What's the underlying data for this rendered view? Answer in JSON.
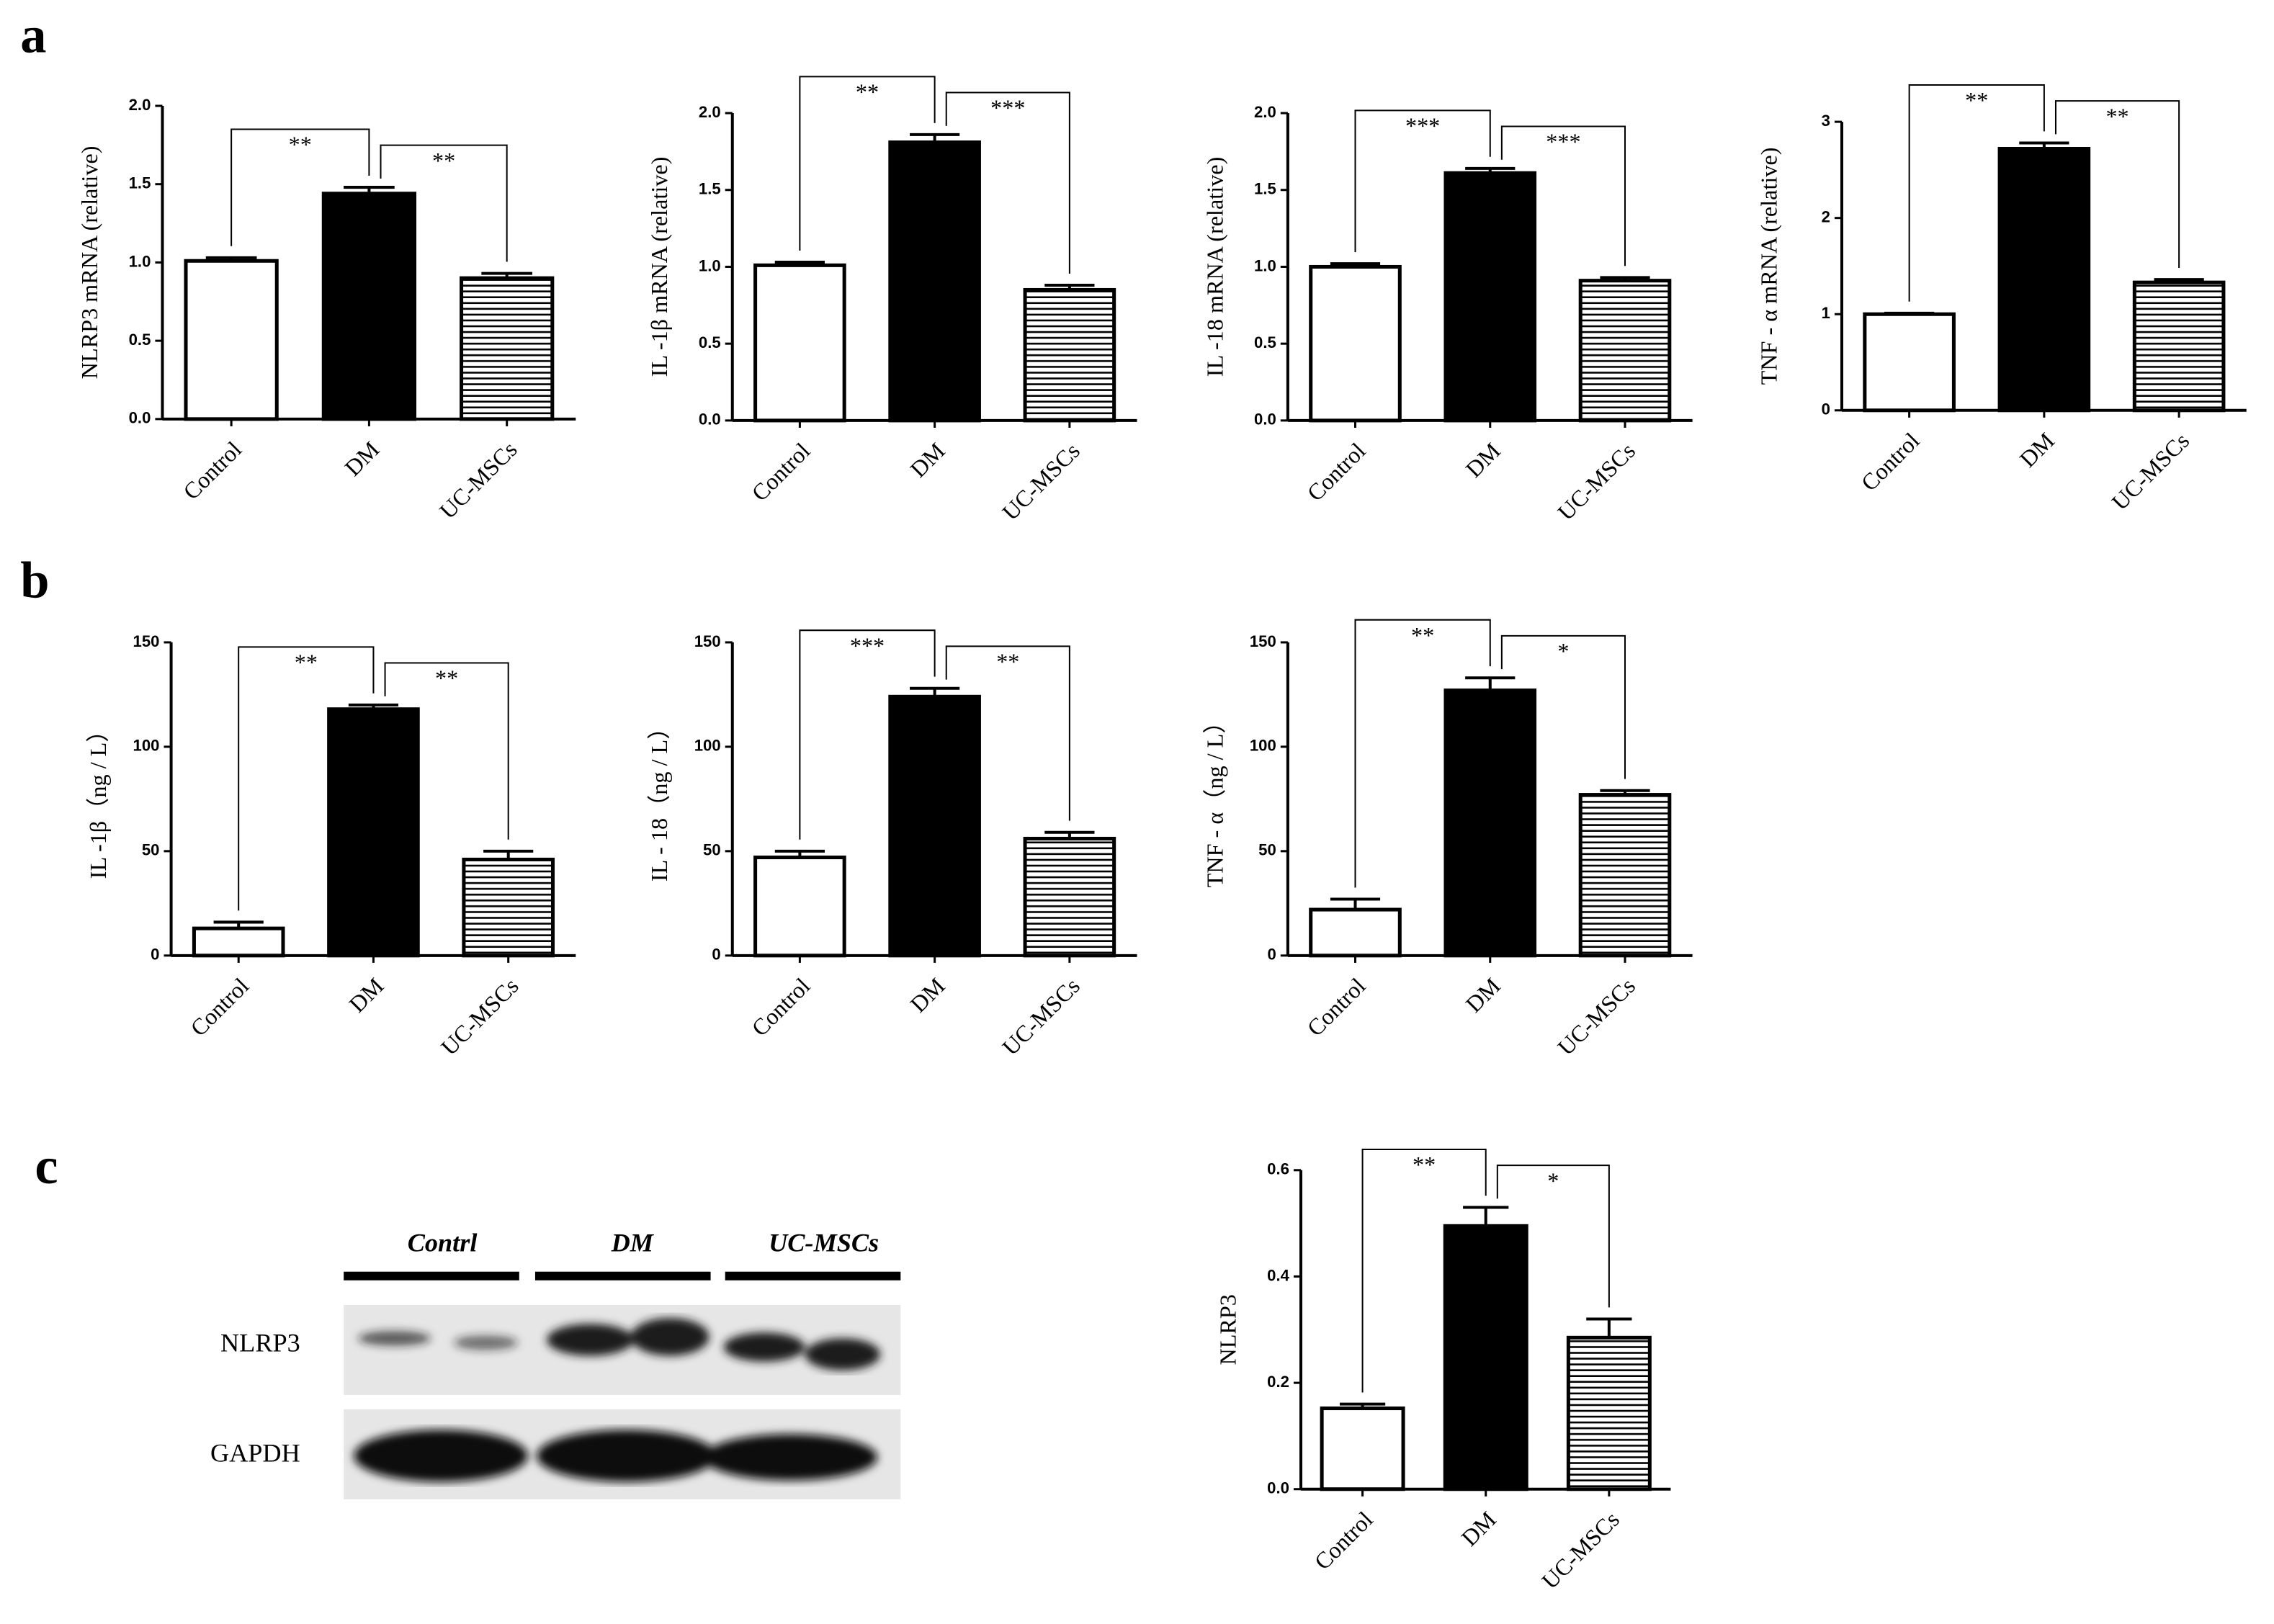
{
  "panel_labels": [
    "a",
    "b",
    "c"
  ],
  "blot": {
    "groups": [
      "Contrl",
      "DM",
      "UC-MSCs"
    ],
    "rows": [
      "NLRP3",
      "GAPDH"
    ]
  },
  "chart_data": [
    {
      "type": "bar",
      "ylabel": "NLRP3  mRNA  (relative)",
      "categories": [
        "Control",
        "DM",
        "UC-MSCs"
      ],
      "values": [
        1.01,
        1.44,
        0.9
      ],
      "errors": [
        0.02,
        0.04,
        0.03
      ],
      "bar_styles": [
        "open",
        "solid",
        "striped"
      ],
      "ylim": [
        0,
        2
      ],
      "yticks": [
        {
          "value": 0,
          "label": "0.0"
        },
        0.5,
        {
          "value": 1,
          "label": "1.0"
        },
        1.5,
        {
          "value": 2,
          "label": "2.0"
        }
      ],
      "annotations": [
        "**",
        "**"
      ]
    },
    {
      "type": "bar",
      "ylabel": "IL -1β  mRNA  (relative)",
      "categories": [
        "Control",
        "DM",
        "UC-MSCs"
      ],
      "values": [
        1.01,
        1.81,
        0.85
      ],
      "errors": [
        0.02,
        0.05,
        0.03
      ],
      "bar_styles": [
        "open",
        "solid",
        "striped"
      ],
      "ylim": [
        0,
        2
      ],
      "yticks": [
        {
          "value": 0,
          "label": "0.0"
        },
        0.5,
        {
          "value": 1,
          "label": "1.0"
        },
        1.5,
        {
          "value": 2,
          "label": "2.0"
        }
      ],
      "annotations": [
        "**",
        "***"
      ]
    },
    {
      "type": "bar",
      "ylabel": "IL -18  mRNA  (relative)",
      "categories": [
        "Control",
        "DM",
        "UC-MSCs"
      ],
      "values": [
        1.0,
        1.61,
        0.91
      ],
      "errors": [
        0.02,
        0.03,
        0.02
      ],
      "bar_styles": [
        "open",
        "solid",
        "striped"
      ],
      "ylim": [
        0,
        2
      ],
      "yticks": [
        {
          "value": 0,
          "label": "0.0"
        },
        0.5,
        {
          "value": 1,
          "label": "1.0"
        },
        1.5,
        {
          "value": 2,
          "label": "2.0"
        }
      ],
      "annotations": [
        "***",
        "***"
      ]
    },
    {
      "type": "bar",
      "ylabel": "TNF - α  mRNA  (relative)",
      "categories": [
        "Control",
        "DM",
        "UC-MSCs"
      ],
      "values": [
        1.0,
        2.72,
        1.33
      ],
      "errors": [
        0.01,
        0.06,
        0.03
      ],
      "bar_styles": [
        "open",
        "solid",
        "striped"
      ],
      "ylim": [
        0,
        3
      ],
      "yticks": [
        0,
        1,
        2,
        3
      ],
      "annotations": [
        "**",
        "**"
      ]
    },
    {
      "type": "bar",
      "ylabel": "IL -1β（ng / L）",
      "categories": [
        "Control",
        "DM",
        "UC-MSCs"
      ],
      "values": [
        13,
        118,
        46
      ],
      "errors": [
        3,
        2,
        4
      ],
      "bar_styles": [
        "open",
        "solid",
        "striped"
      ],
      "ylim": [
        0,
        150
      ],
      "yticks": [
        0,
        50,
        100,
        150
      ],
      "annotations": [
        "**",
        "**"
      ]
    },
    {
      "type": "bar",
      "ylabel": "IL - 18（ng / L）",
      "categories": [
        "Control",
        "DM",
        "UC-MSCs"
      ],
      "values": [
        47,
        124,
        56
      ],
      "errors": [
        3,
        4,
        3
      ],
      "bar_styles": [
        "open",
        "solid",
        "striped"
      ],
      "ylim": [
        0,
        150
      ],
      "yticks": [
        0,
        50,
        100,
        150
      ],
      "annotations": [
        "***",
        "**"
      ]
    },
    {
      "type": "bar",
      "ylabel": "TNF - α（ng / L）",
      "categories": [
        "Control",
        "DM",
        "UC-MSCs"
      ],
      "values": [
        22,
        127,
        77
      ],
      "errors": [
        5,
        6,
        2
      ],
      "bar_styles": [
        "open",
        "solid",
        "striped"
      ],
      "ylim": [
        0,
        150
      ],
      "yticks": [
        0,
        50,
        100,
        150
      ],
      "annotations": [
        "**",
        "*"
      ]
    },
    {
      "type": "bar",
      "ylabel": "NLRP3",
      "categories": [
        "Control",
        "DM",
        "UC-MSCs"
      ],
      "values": [
        0.152,
        0.495,
        0.285
      ],
      "errors": [
        0.008,
        0.035,
        0.035
      ],
      "bar_styles": [
        "open",
        "solid",
        "striped"
      ],
      "ylim": [
        0,
        0.6
      ],
      "yticks": [
        {
          "value": 0,
          "label": "0.0"
        },
        0.2,
        0.4,
        0.6
      ],
      "annotations": [
        "**",
        "*"
      ]
    }
  ]
}
